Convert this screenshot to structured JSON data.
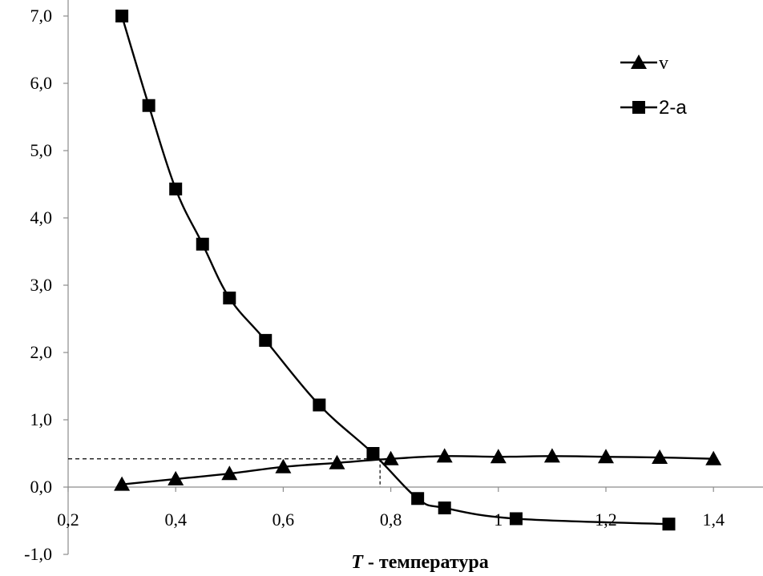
{
  "chart_data": {
    "type": "line",
    "xlabel_italic": "T",
    "xlabel_rest": " - температура",
    "xlim": [
      0.2,
      1.5
    ],
    "ylim": [
      -1.0,
      7.0
    ],
    "x_tick_labels": [
      "0,2",
      "0,4",
      "0,6",
      "0,8",
      "1",
      "1,2",
      "1,4"
    ],
    "x_tick_values": [
      0.2,
      0.4,
      0.6,
      0.8,
      1.0,
      1.2,
      1.4
    ],
    "y_tick_labels": [
      "-1,0",
      "0,0",
      "1,0",
      "2,0",
      "3,0",
      "4,0",
      "5,0",
      "6,0",
      "7,0"
    ],
    "y_tick_values": [
      -1,
      0,
      1,
      2,
      3,
      4,
      5,
      6,
      7
    ],
    "grid": false,
    "legend_position": "top-right",
    "series": [
      {
        "name": "v",
        "marker": "triangle",
        "color": "#000000",
        "x": [
          0.3,
          0.4,
          0.5,
          0.6,
          0.7,
          0.8,
          0.9,
          1.0,
          1.1,
          1.2,
          1.3,
          1.4
        ],
        "y": [
          0.04,
          0.12,
          0.2,
          0.3,
          0.36,
          0.42,
          0.46,
          0.45,
          0.46,
          0.45,
          0.44,
          0.42
        ]
      },
      {
        "name": "2-a",
        "marker": "square",
        "color": "#000000",
        "x": [
          0.3,
          0.35,
          0.4,
          0.45,
          0.5,
          0.567,
          0.667,
          0.767,
          0.85,
          0.9,
          1.033,
          1.317
        ],
        "y": [
          7.0,
          5.67,
          4.43,
          3.61,
          2.81,
          2.18,
          1.22,
          0.5,
          -0.17,
          -0.31,
          -0.47,
          -0.55
        ]
      }
    ],
    "reference_lines": {
      "intersection_x": 0.78,
      "intersection_y": 0.42
    }
  }
}
